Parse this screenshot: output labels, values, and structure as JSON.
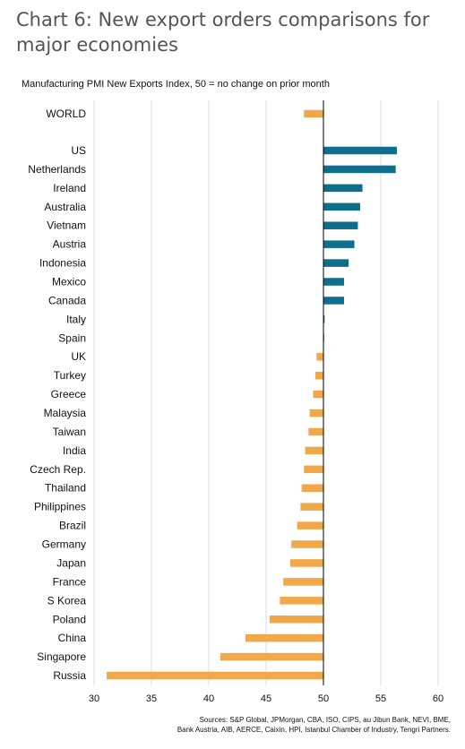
{
  "title": "Chart 6: New export orders comparisons for major economies",
  "subtitle": "Manufacturing PMI New Exports Index, 50 = no change on prior month",
  "source_line1": "Sources: S&P Global, JPMorgan, CBA, ISO, CIPS, au Jibun Bank, NEVI, BME,",
  "source_line2": "Bank Austria, AIB, AERCE, Caixin, HPI, Istanbul Chamber of Industry, Tengri Partners.",
  "colors": {
    "above": "#0f6e8c",
    "below": "#f0a848",
    "grid": "#dddddd",
    "axis": "#000000"
  },
  "chart_data": {
    "type": "bar",
    "orientation": "horizontal",
    "title": "Chart 6: New export orders comparisons for major economies",
    "subtitle": "Manufacturing PMI New Exports Index, 50 = no change on prior month",
    "baseline": 50,
    "xlim": [
      30,
      60
    ],
    "xticks": [
      30,
      35,
      40,
      45,
      50,
      55,
      60
    ],
    "grid": true,
    "categories": [
      "WORLD",
      "US",
      "Netherlands",
      "Ireland",
      "Australia",
      "Vietnam",
      "Austria",
      "Indonesia",
      "Mexico",
      "Canada",
      "Italy",
      "Spain",
      "UK",
      "Turkey",
      "Greece",
      "Malaysia",
      "Taiwan",
      "India",
      "Czech Rep.",
      "Thailand",
      "Philippines",
      "Brazil",
      "Germany",
      "Japan",
      "France",
      "S Korea",
      "Poland",
      "China",
      "Singapore",
      "Russia"
    ],
    "values": [
      48.3,
      56.4,
      56.3,
      53.4,
      53.2,
      53.0,
      52.7,
      52.2,
      51.8,
      51.8,
      50.1,
      50.0,
      49.4,
      49.3,
      49.1,
      48.8,
      48.7,
      48.4,
      48.3,
      48.1,
      48.0,
      47.7,
      47.2,
      47.1,
      46.5,
      46.2,
      45.3,
      43.2,
      41.0,
      31.1
    ]
  }
}
